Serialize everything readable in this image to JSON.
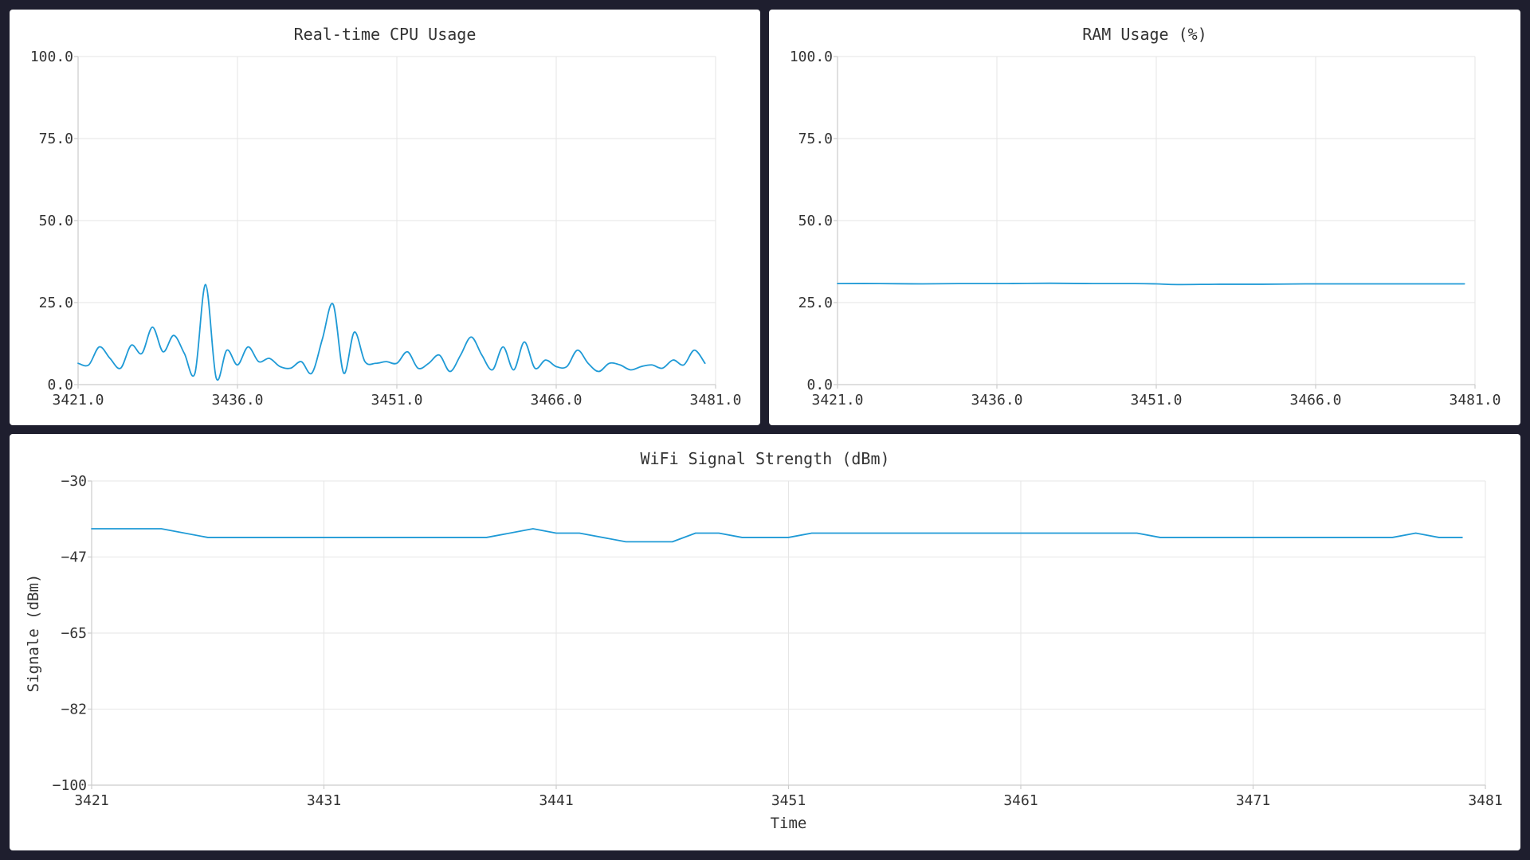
{
  "colors": {
    "background": "#1e1e2e",
    "panel": "#ffffff",
    "series": "#1f9ad6",
    "grid": "#e6e6e6"
  },
  "chart_data": [
    {
      "id": "cpu",
      "type": "line",
      "title": "Real-time CPU Usage",
      "xlabel": "",
      "ylabel": "",
      "xlim": [
        3421,
        3481
      ],
      "ylim": [
        0,
        100
      ],
      "xticks": [
        3421,
        3436,
        3451,
        3466,
        3481
      ],
      "yticks": [
        0,
        25,
        50,
        75,
        100
      ],
      "xtick_labels": [
        "3421.0",
        "3436.0",
        "3451.0",
        "3466.0",
        "3481.0"
      ],
      "ytick_labels": [
        "0.0",
        "25.0",
        "50.0",
        "75.0",
        "100.0"
      ],
      "smooth": true,
      "grid": true,
      "legend": "none",
      "series": [
        {
          "x": [
            3421,
            3422,
            3423,
            3424,
            3425,
            3426,
            3427,
            3428,
            3429,
            3430,
            3431,
            3432,
            3433,
            3434,
            3435,
            3436,
            3437,
            3438,
            3439,
            3440,
            3441,
            3442,
            3443,
            3444,
            3445,
            3446,
            3447,
            3448,
            3449,
            3450,
            3451,
            3452,
            3453,
            3454,
            3455,
            3456,
            3457,
            3458,
            3459,
            3460,
            3461,
            3462,
            3463,
            3464,
            3465,
            3466,
            3467,
            3468,
            3469,
            3470,
            3471,
            3472,
            3473,
            3474,
            3475,
            3476,
            3477,
            3478,
            3479,
            3480
          ],
          "y": [
            6.5,
            6.0,
            11.5,
            8.0,
            5.0,
            12.0,
            9.5,
            17.5,
            10.0,
            15.0,
            9.5,
            3.5,
            30.5,
            2.0,
            10.5,
            6.0,
            11.5,
            7.0,
            8.0,
            5.5,
            5.0,
            7.0,
            3.5,
            14.0,
            24.5,
            3.5,
            16.0,
            7.0,
            6.5,
            7.0,
            6.5,
            10.0,
            5.0,
            6.5,
            9.0,
            4.0,
            9.0,
            14.5,
            9.0,
            4.5,
            11.5,
            4.5,
            13.0,
            5.0,
            7.5,
            5.5,
            5.5,
            10.5,
            6.5,
            4.0,
            6.5,
            6.0,
            4.5,
            5.5,
            6.0,
            5.0,
            7.5,
            6.0,
            10.5,
            6.5
          ]
        }
      ]
    },
    {
      "id": "ram",
      "type": "line",
      "title": "RAM Usage (%)",
      "xlabel": "",
      "ylabel": "",
      "xlim": [
        3421,
        3481
      ],
      "ylim": [
        0,
        100
      ],
      "xticks": [
        3421,
        3436,
        3451,
        3466,
        3481
      ],
      "yticks": [
        0,
        25,
        50,
        75,
        100
      ],
      "xtick_labels": [
        "3421.0",
        "3436.0",
        "3451.0",
        "3466.0",
        "3481.0"
      ],
      "ytick_labels": [
        "0.0",
        "25.0",
        "50.0",
        "75.0",
        "100.0"
      ],
      "smooth": true,
      "grid": true,
      "legend": "none",
      "series": [
        {
          "x": [
            3421,
            3425,
            3429,
            3433,
            3437,
            3441,
            3445,
            3449,
            3451,
            3453,
            3457,
            3461,
            3465,
            3469,
            3473,
            3477,
            3480
          ],
          "y": [
            30.8,
            30.8,
            30.7,
            30.8,
            30.8,
            30.9,
            30.8,
            30.8,
            30.7,
            30.5,
            30.6,
            30.6,
            30.7,
            30.7,
            30.7,
            30.7,
            30.7
          ]
        }
      ]
    },
    {
      "id": "wifi",
      "type": "line",
      "title": "WiFi Signal Strength (dBm)",
      "xlabel": "Time",
      "ylabel": "Signale (dBm)",
      "xlim": [
        3421,
        3481
      ],
      "ylim": [
        -100,
        -30
      ],
      "xticks": [
        3421,
        3431,
        3441,
        3451,
        3461,
        3471,
        3481
      ],
      "yticks": [
        -100,
        -82.5,
        -65,
        -47.5,
        -30
      ],
      "xtick_labels": [
        "3421",
        "3431",
        "3441",
        "3451",
        "3461",
        "3471",
        "3481"
      ],
      "ytick_labels": [
        "−100",
        "−82",
        "−65",
        "−47",
        "−30"
      ],
      "smooth": false,
      "grid": true,
      "legend": "none",
      "series": [
        {
          "x": [
            3421,
            3424,
            3426,
            3438,
            3440,
            3441,
            3442,
            3444,
            3446,
            3447,
            3448,
            3449,
            3451,
            3452,
            3466,
            3467,
            3477,
            3478,
            3479,
            3480
          ],
          "y": [
            -41,
            -41,
            -43,
            -43,
            -41,
            -42,
            -42,
            -44,
            -44,
            -42,
            -42,
            -43,
            -43,
            -42,
            -42,
            -43,
            -43,
            -42,
            -43,
            -43
          ]
        }
      ]
    }
  ]
}
